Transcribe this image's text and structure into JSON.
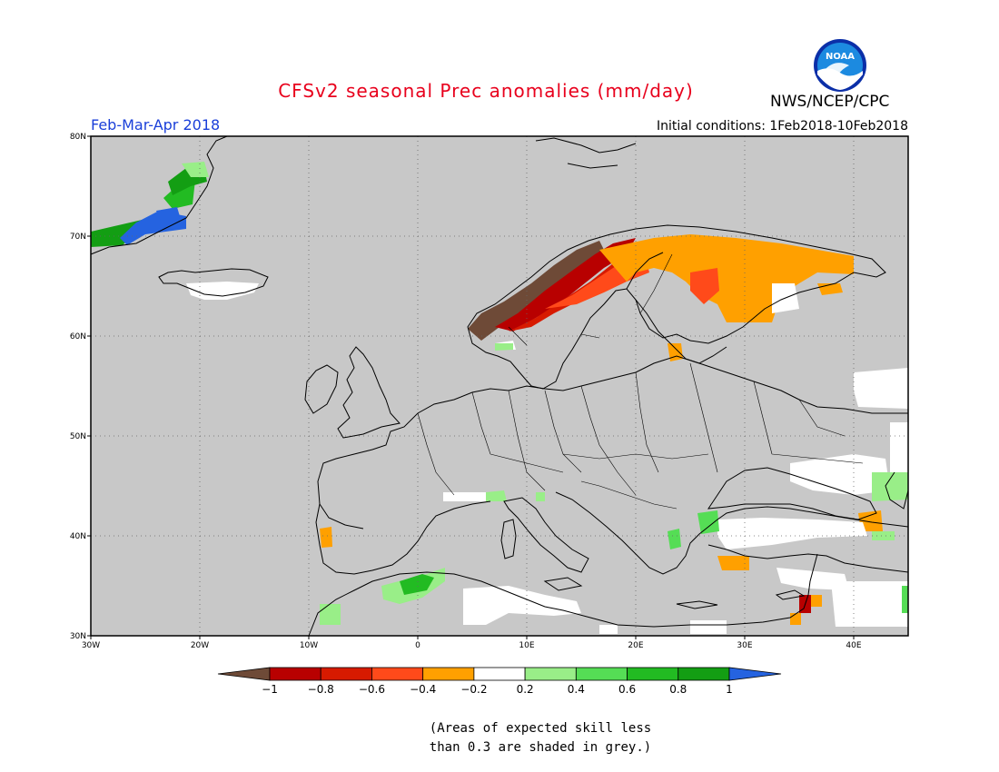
{
  "header": {
    "title": "CFSv2 seasonal Prec anomalies (mm/day)",
    "season": "Feb-Mar-Apr 2018",
    "initial_conditions": "Initial conditions: 1Feb2018-10Feb2018",
    "agency": "NWS/NCEP/CPC",
    "logo_text": "NOAA"
  },
  "colors": {
    "title": "#e8001c",
    "season": "#1a3fd9",
    "grey_mask": "#c8c8c8"
  },
  "map": {
    "lon_range": [
      -30,
      45
    ],
    "lat_range": [
      30,
      80
    ],
    "lon_labels": [
      "30W",
      "20W",
      "10W",
      "0",
      "10E",
      "20E",
      "30E",
      "40E"
    ],
    "lat_labels": [
      "80N",
      "70N",
      "60N",
      "50N",
      "40N",
      "30N"
    ]
  },
  "colorbar": {
    "ticks": [
      "−1",
      "−0.8",
      "−0.6",
      "−0.4",
      "−0.2",
      "0.2",
      "0.4",
      "0.6",
      "0.8",
      "1"
    ],
    "bins": [
      {
        "color": "#6e4a37"
      },
      {
        "color": "#b80000"
      },
      {
        "color": "#d71a00"
      },
      {
        "color": "#ff4a1a"
      },
      {
        "color": "#ffa000"
      },
      {
        "color": "#ffffff"
      },
      {
        "color": "#99ee88"
      },
      {
        "color": "#55dd55"
      },
      {
        "color": "#22bb22"
      },
      {
        "color": "#139e13"
      },
      {
        "color": "#2563e0"
      }
    ]
  },
  "note": {
    "line1": "(Areas of expected skill less",
    "line2": "than 0.3 are shaded in grey.)"
  }
}
